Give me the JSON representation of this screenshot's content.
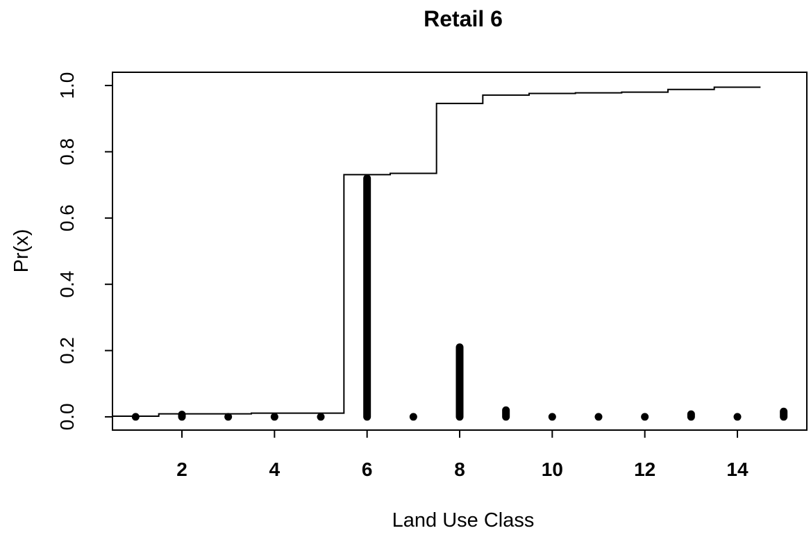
{
  "chart_data": {
    "type": "line",
    "title": "Retail 6",
    "xlabel": "Land Use Class",
    "ylabel": "Pr(x)",
    "xlim": [
      0.5,
      15.5
    ],
    "ylim": [
      -0.04,
      1.04
    ],
    "x_ticks": [
      2,
      4,
      6,
      8,
      10,
      12,
      14
    ],
    "x_tick_labels": [
      "2",
      "4",
      "6",
      "8",
      "10",
      "12",
      "14"
    ],
    "y_ticks": [
      0.0,
      0.2,
      0.4,
      0.6,
      0.8,
      1.0
    ],
    "y_tick_labels": [
      "0.0",
      "0.2",
      "0.4",
      "0.6",
      "0.8",
      "1.0"
    ],
    "grid": false,
    "legend": "none",
    "series": [
      {
        "kind": "cumulative-step",
        "x": [
          1,
          2,
          3,
          4,
          5,
          6,
          7,
          8,
          9,
          10,
          11,
          12,
          13,
          14
        ],
        "y": [
          0.002,
          0.009,
          0.009,
          0.011,
          0.011,
          0.731,
          0.735,
          0.946,
          0.971,
          0.976,
          0.978,
          0.98,
          0.988,
          0.995
        ]
      },
      {
        "kind": "point-stacks",
        "x": [
          1,
          2,
          3,
          4,
          5,
          6,
          7,
          8,
          9,
          10,
          11,
          12,
          13,
          14,
          15
        ],
        "y_max": [
          0.002,
          0.007,
          0.0,
          0.002,
          0.0,
          0.72,
          0.005,
          0.21,
          0.02,
          0.005,
          0.002,
          0.0,
          0.008,
          0.0,
          0.016
        ]
      }
    ]
  },
  "colors": {
    "ink": "#000000",
    "background": "#ffffff"
  }
}
